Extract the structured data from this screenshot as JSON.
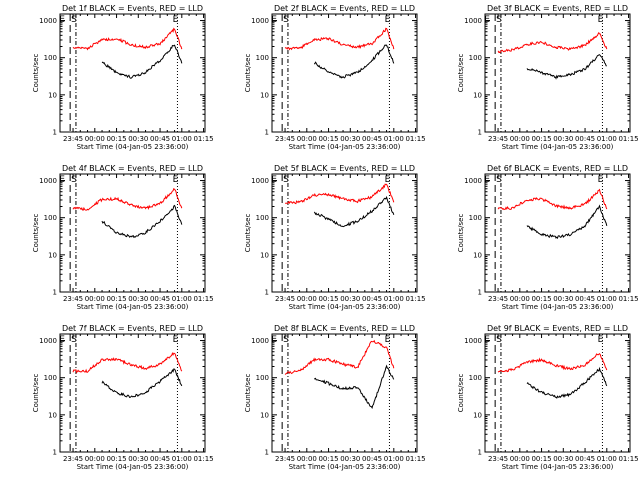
{
  "figure": {
    "xlabel": "Start Time (04-Jan-05 23:36:00)",
    "ylabel": "Counts/sec",
    "x_ticks": [
      "23:45",
      "00:00",
      "00:15",
      "00:30",
      "00:45",
      "01:00",
      "01:15"
    ],
    "y_ticks": [
      "1",
      "10",
      "100",
      "1000"
    ],
    "y_scale": "log",
    "colors": {
      "events": "#000000",
      "lld": "#ff0000"
    }
  },
  "chart_data": [
    {
      "type": "line",
      "title": "Det 1f BLACK = Events, RED = LLD",
      "markers": [
        "E",
        "S",
        "E"
      ],
      "x": [
        "23:45",
        "23:55",
        "00:05",
        "00:15",
        "00:25",
        "00:35",
        "00:45",
        "00:55",
        "01:00"
      ],
      "series": [
        {
          "name": "Events",
          "values": [
            null,
            null,
            75,
            40,
            30,
            40,
            85,
            230,
            70
          ]
        },
        {
          "name": "LLD",
          "values": [
            180,
            180,
            300,
            330,
            220,
            190,
            240,
            600,
            170
          ]
        }
      ],
      "ylim": [
        1,
        1000
      ],
      "xlim": [
        "23:36",
        "01:16"
      ],
      "grid": false
    },
    {
      "type": "line",
      "title": "Det 2f BLACK = Events, RED = LLD",
      "markers": [
        "E",
        "S",
        "E"
      ],
      "x": [
        "23:45",
        "23:55",
        "00:05",
        "00:15",
        "00:25",
        "00:35",
        "00:45",
        "00:55",
        "01:00"
      ],
      "series": [
        {
          "name": "Events",
          "values": [
            null,
            null,
            75,
            40,
            30,
            40,
            85,
            230,
            70
          ]
        },
        {
          "name": "LLD",
          "values": [
            180,
            180,
            300,
            330,
            220,
            190,
            240,
            600,
            170
          ]
        }
      ],
      "ylim": [
        1,
        1000
      ],
      "xlim": [
        "23:36",
        "01:16"
      ],
      "grid": false
    },
    {
      "type": "line",
      "title": "Det 3f BLACK = Events, RED = LLD",
      "markers": [
        "E",
        "S",
        "E"
      ],
      "x": [
        "23:45",
        "23:55",
        "00:05",
        "00:15",
        "00:25",
        "00:35",
        "00:45",
        "00:55",
        "01:00"
      ],
      "series": [
        {
          "name": "Events",
          "values": [
            null,
            null,
            50,
            40,
            30,
            35,
            50,
            120,
            60
          ]
        },
        {
          "name": "LLD",
          "values": [
            150,
            160,
            230,
            260,
            190,
            170,
            220,
            450,
            170
          ]
        }
      ],
      "ylim": [
        1,
        1000
      ],
      "xlim": [
        "23:36",
        "01:16"
      ],
      "grid": false
    },
    {
      "type": "line",
      "title": "Det 4f BLACK = Events, RED = LLD",
      "markers": [
        "E",
        "S",
        "E"
      ],
      "x": [
        "23:45",
        "23:55",
        "00:05",
        "00:15",
        "00:25",
        "00:35",
        "00:45",
        "00:55",
        "01:00"
      ],
      "series": [
        {
          "name": "Events",
          "values": [
            null,
            null,
            80,
            40,
            30,
            40,
            80,
            200,
            65
          ]
        },
        {
          "name": "LLD",
          "values": [
            180,
            170,
            310,
            320,
            220,
            180,
            240,
            600,
            180
          ]
        }
      ],
      "ylim": [
        1,
        1000
      ],
      "xlim": [
        "23:36",
        "01:16"
      ],
      "grid": false
    },
    {
      "type": "line",
      "title": "Det 5f BLACK = Events, RED = LLD",
      "markers": [
        "E",
        "S",
        "E"
      ],
      "x": [
        "23:45",
        "23:55",
        "00:05",
        "00:15",
        "00:25",
        "00:35",
        "00:45",
        "00:55",
        "01:00"
      ],
      "series": [
        {
          "name": "Events",
          "values": [
            null,
            null,
            140,
            90,
            60,
            80,
            150,
            350,
            120
          ]
        },
        {
          "name": "LLD",
          "values": [
            250,
            260,
            400,
            420,
            320,
            280,
            360,
            800,
            260
          ]
        }
      ],
      "ylim": [
        1,
        1000
      ],
      "xlim": [
        "23:36",
        "01:16"
      ],
      "grid": false
    },
    {
      "type": "line",
      "title": "Det 6f BLACK = Events, RED = LLD",
      "markers": [
        "E",
        "S",
        "E"
      ],
      "x": [
        "23:45",
        "23:55",
        "00:05",
        "00:15",
        "00:25",
        "00:35",
        "00:45",
        "00:55",
        "01:00"
      ],
      "series": [
        {
          "name": "Events",
          "values": [
            null,
            null,
            60,
            35,
            30,
            35,
            60,
            200,
            60
          ]
        },
        {
          "name": "LLD",
          "values": [
            180,
            180,
            300,
            320,
            210,
            180,
            230,
            550,
            170
          ]
        }
      ],
      "ylim": [
        1,
        1000
      ],
      "xlim": [
        "23:36",
        "01:16"
      ],
      "grid": false
    },
    {
      "type": "line",
      "title": "Det 7f BLACK = Events, RED = LLD",
      "markers": [
        "E",
        "S",
        "E"
      ],
      "x": [
        "23:45",
        "23:55",
        "00:05",
        "00:15",
        "00:25",
        "00:35",
        "00:45",
        "00:55",
        "01:00"
      ],
      "series": [
        {
          "name": "Events",
          "values": [
            null,
            null,
            75,
            40,
            30,
            40,
            80,
            170,
            60
          ]
        },
        {
          "name": "LLD",
          "values": [
            150,
            150,
            300,
            320,
            220,
            180,
            230,
            470,
            150
          ]
        }
      ],
      "ylim": [
        1,
        1000
      ],
      "xlim": [
        "23:36",
        "01:16"
      ],
      "grid": false
    },
    {
      "type": "line",
      "title": "Det 8f BLACK = Events, RED = LLD",
      "markers": [
        "E",
        "S",
        "E"
      ],
      "x": [
        "23:45",
        "23:55",
        "00:05",
        "00:15",
        "00:25",
        "00:35",
        "00:45",
        "00:55",
        "01:00"
      ],
      "series": [
        {
          "name": "Events",
          "values": [
            null,
            null,
            100,
            70,
            50,
            55,
            15,
            200,
            90
          ]
        },
        {
          "name": "LLD",
          "values": [
            130,
            150,
            300,
            310,
            230,
            190,
            1000,
            650,
            180
          ]
        }
      ],
      "ylim": [
        1,
        1000
      ],
      "xlim": [
        "23:36",
        "01:16"
      ],
      "grid": false
    },
    {
      "type": "line",
      "title": "Det 9f BLACK = Events, RED = LLD",
      "markers": [
        "E",
        "S",
        "E"
      ],
      "x": [
        "23:45",
        "23:55",
        "00:05",
        "00:15",
        "00:25",
        "00:35",
        "00:45",
        "00:55",
        "01:00"
      ],
      "series": [
        {
          "name": "Events",
          "values": [
            null,
            null,
            70,
            40,
            30,
            35,
            75,
            170,
            60
          ]
        },
        {
          "name": "LLD",
          "values": [
            150,
            160,
            270,
            300,
            210,
            170,
            220,
            470,
            160
          ]
        }
      ],
      "ylim": [
        1,
        1000
      ],
      "xlim": [
        "23:36",
        "01:16"
      ],
      "grid": false
    }
  ]
}
